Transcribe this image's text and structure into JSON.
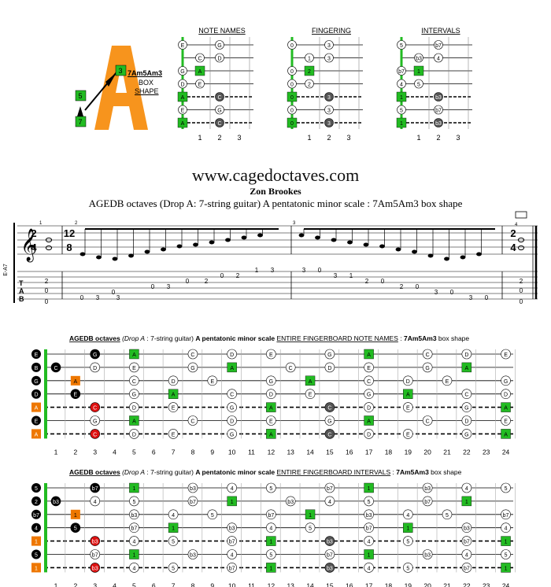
{
  "logo": {
    "letter": "A",
    "chord_name": "7Am5Am3",
    "box_label": "BOX",
    "shape_label": "SHAPE",
    "markers": [
      "3",
      "5",
      "7"
    ]
  },
  "site": "www.cagedoctaves.com",
  "author": "Zon Brookes",
  "subtitle": "AGEDB octaves (Drop A: 7-string guitar) A pentatonic minor scale : 7Am5Am3 box shape",
  "mini_diagrams": [
    {
      "title": "NOTE NAMES",
      "frets": [
        "1",
        "2",
        "3"
      ],
      "rows": [
        [
          "E",
          "",
          "G"
        ],
        [
          "",
          "C",
          "D"
        ],
        [
          "G",
          "A",
          ""
        ],
        [
          "D",
          "E",
          ""
        ],
        [
          "A",
          "",
          "C"
        ],
        [
          "E",
          "",
          "G"
        ],
        [
          "A",
          "",
          "C"
        ]
      ],
      "fills": [
        [
          "o",
          "",
          "o"
        ],
        [
          "",
          "o",
          "o"
        ],
        [
          "o",
          "g",
          ""
        ],
        [
          "o",
          "o",
          ""
        ],
        [
          "g",
          "",
          "d"
        ],
        [
          "o",
          "",
          "o"
        ],
        [
          "g",
          "",
          "d"
        ]
      ]
    },
    {
      "title": "FINGERING",
      "frets": [
        "1",
        "2",
        "3"
      ],
      "rows": [
        [
          "0",
          "",
          "3"
        ],
        [
          "",
          "1",
          "3"
        ],
        [
          "0",
          "2",
          ""
        ],
        [
          "0",
          "2",
          ""
        ],
        [
          "0",
          "",
          "3"
        ],
        [
          "0",
          "",
          "3"
        ],
        [
          "0",
          "",
          "3"
        ]
      ],
      "fills": [
        [
          "o",
          "",
          "o"
        ],
        [
          "",
          "o",
          "o"
        ],
        [
          "o",
          "g",
          ""
        ],
        [
          "o",
          "o",
          ""
        ],
        [
          "g",
          "",
          "d"
        ],
        [
          "o",
          "",
          "o"
        ],
        [
          "g",
          "",
          "d"
        ]
      ]
    },
    {
      "title": "INTERVALS",
      "frets": [
        "1",
        "2",
        "3"
      ],
      "rows": [
        [
          "5",
          "",
          "b7"
        ],
        [
          "",
          "b3",
          "4"
        ],
        [
          "b7",
          "1",
          ""
        ],
        [
          "4",
          "5",
          ""
        ],
        [
          "1",
          "",
          "b3"
        ],
        [
          "5",
          "",
          "b7"
        ],
        [
          "1",
          "",
          "b3"
        ]
      ],
      "fills": [
        [
          "o",
          "",
          "o"
        ],
        [
          "",
          "o",
          "o"
        ],
        [
          "o",
          "g",
          ""
        ],
        [
          "o",
          "o",
          ""
        ],
        [
          "g",
          "",
          "d"
        ],
        [
          "o",
          "",
          "o"
        ],
        [
          "g",
          "",
          "d"
        ]
      ]
    }
  ],
  "notation": {
    "string_label": "E-A7",
    "time1": [
      "2",
      "4"
    ],
    "time2": [
      "12",
      "8"
    ],
    "time3": [
      "2",
      "4"
    ],
    "measure_numbers": [
      "1",
      "2",
      "3",
      "4"
    ],
    "tab_letters": [
      "T",
      "A",
      "B"
    ],
    "tab_m1": [
      "2",
      "0",
      "0"
    ],
    "tab_m2": [
      "0",
      "3",
      "0",
      "3",
      "0",
      "3",
      "0",
      "2",
      "0",
      "2",
      "1",
      "3",
      "0",
      "3"
    ],
    "tab_m3": [
      "3",
      "0",
      "3",
      "1",
      "2",
      "0",
      "2",
      "0",
      "3",
      "0",
      "3",
      "0",
      "3",
      "0"
    ],
    "tab_m4": [
      "2",
      "0",
      "0"
    ]
  },
  "board_notes": {
    "title_bold": "AGEDB octaves",
    "title_italic": "(Drop A",
    "title_mid": ": 7-string guitar)",
    "title_scale": "A pentatonic minor scale",
    "title_section": "ENTIRE FINGERBOARD  NOTE NAMES",
    "title_shape": "7Am5Am3",
    "title_end": "box shape",
    "open": [
      "E",
      "B",
      "G",
      "D",
      "A",
      "E",
      "A"
    ],
    "frets": [
      "1",
      "2",
      "3",
      "4",
      "5",
      "6",
      "7",
      "8",
      "9",
      "10",
      "11",
      "12",
      "13",
      "14",
      "15",
      "16",
      "17",
      "18",
      "19",
      "20",
      "21",
      "22",
      "23",
      "24"
    ]
  },
  "board_intervals": {
    "title_bold": "AGEDB octaves",
    "title_italic": "(Drop A",
    "title_mid": ": 7-string guitar)",
    "title_scale": "A pentatonic minor scale",
    "title_section": "ENTIRE FINGERBOARD  INTERVALS",
    "title_shape": "7Am5Am3",
    "title_end": "box shape",
    "open": [
      "5",
      "2",
      "b7",
      "4",
      "1",
      "5",
      "1"
    ],
    "frets": [
      "1",
      "2",
      "3",
      "4",
      "5",
      "6",
      "7",
      "8",
      "9",
      "10",
      "11",
      "12",
      "13",
      "14",
      "15",
      "16",
      "17",
      "18",
      "19",
      "20",
      "21",
      "22",
      "23",
      "24"
    ]
  },
  "colors": {
    "green": "#22bb22",
    "orange": "#ee7700",
    "red": "#dd1111",
    "dark": "#555555"
  }
}
